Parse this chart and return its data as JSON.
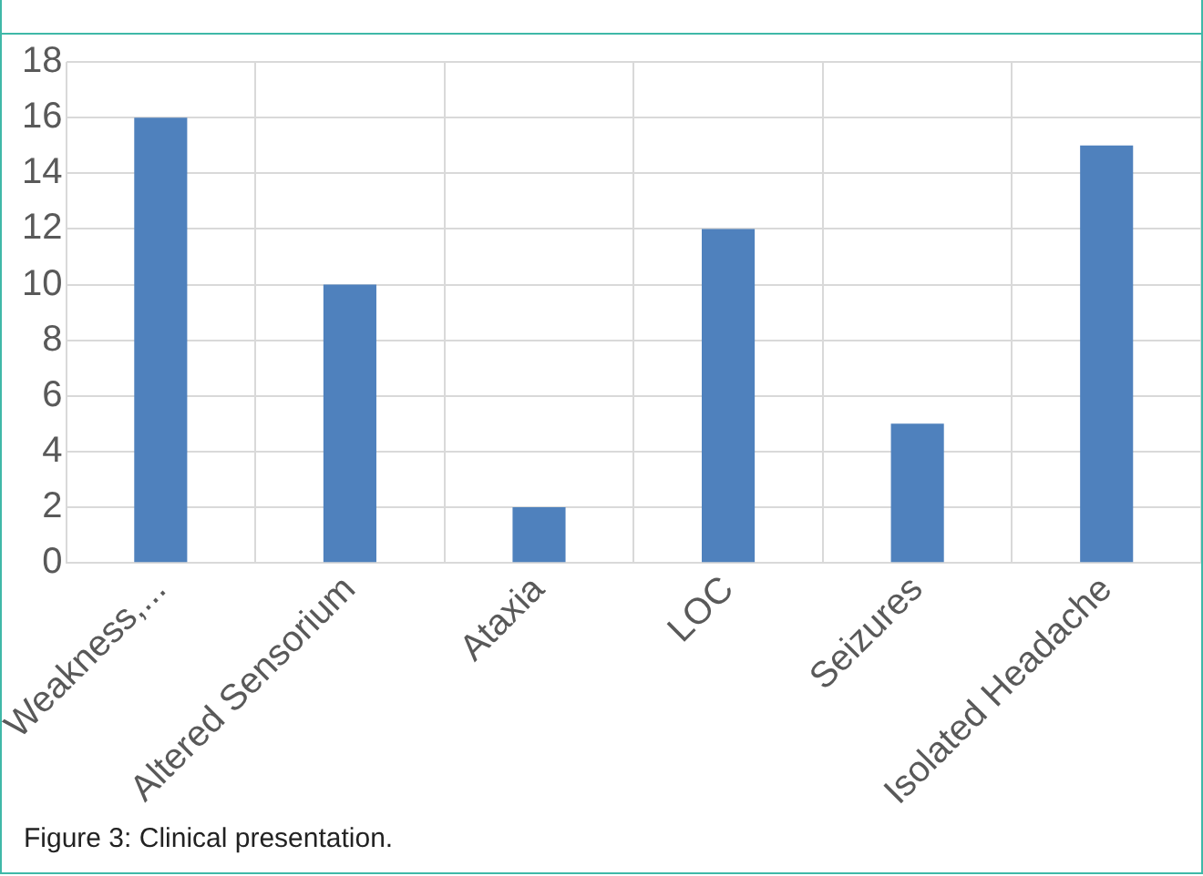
{
  "chart_data": {
    "type": "bar",
    "categories": [
      "Weakness,...",
      "Altered Sensorium",
      "Ataxia",
      "LOC",
      "Seizures",
      "Isolated Headache"
    ],
    "values": [
      16,
      10,
      2,
      12,
      5,
      15
    ],
    "color": "#4f81bd",
    "ylim": [
      0,
      18
    ],
    "yticks": [
      0,
      2,
      4,
      6,
      8,
      10,
      12,
      14,
      16,
      18
    ],
    "grid": true,
    "legend": false,
    "annotations": [
      "Figure 3: Clinical presentation."
    ]
  }
}
